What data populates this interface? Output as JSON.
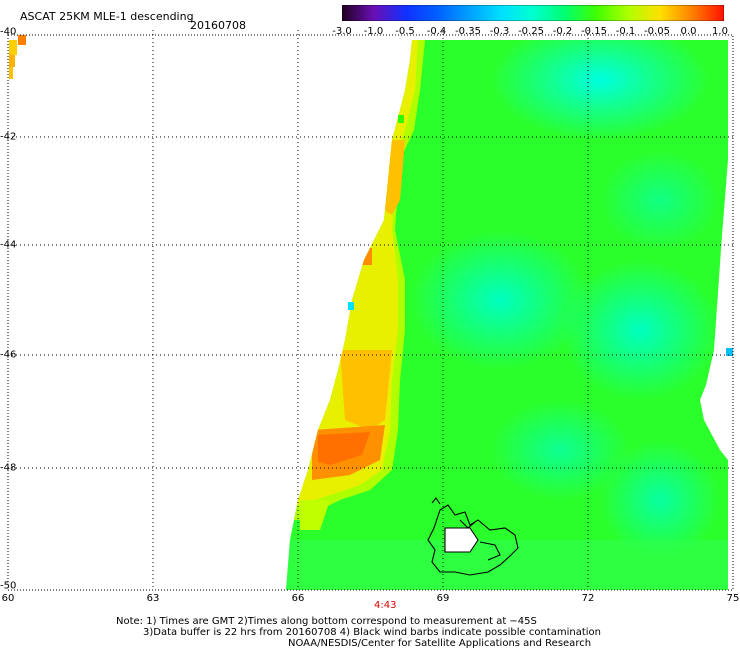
{
  "header": {
    "title": "ASCAT 25KM MLE-1 descending",
    "date": "20160708"
  },
  "colorbar": {
    "labels": [
      "-3.0",
      "-1.0",
      "-0.5",
      "-0.4",
      "-0.35",
      "-0.3",
      "-0.25",
      "-0.2",
      "-0.15",
      "-0.1",
      "-0.05",
      "0.0",
      "1.0"
    ],
    "colors": [
      "#200020",
      "#6a0fb3",
      "#1030ff",
      "#0060ff",
      "#00a0ff",
      "#00e0ff",
      "#00ffd0",
      "#00ff70",
      "#40ff00",
      "#b0ff00",
      "#ffe000",
      "#ff8000",
      "#ff1000"
    ]
  },
  "map": {
    "lon_ticks": [
      "60",
      "63",
      "66",
      "69",
      "72",
      "75"
    ],
    "lat_ticks": [
      "-40",
      "-42",
      "-44",
      "-46",
      "-48",
      "-50"
    ],
    "lon_range": [
      60,
      75
    ],
    "lat_range": [
      -40,
      -50
    ],
    "grid": "dotted",
    "feature_icon": "island-outline-icon",
    "swath_color_dominant": "#40ff00"
  },
  "time_label": "4:43",
  "notes": {
    "line1": "Note: 1) Times are GMT 2)Times along bottom correspond to measurement at −45S",
    "line2": "3)Data buffer is 22 hrs from 20160708 4) Black wind barbs indicate possible contamination",
    "line3": "NOAA/NESDIS/Center for Satellite Applications and Research"
  }
}
